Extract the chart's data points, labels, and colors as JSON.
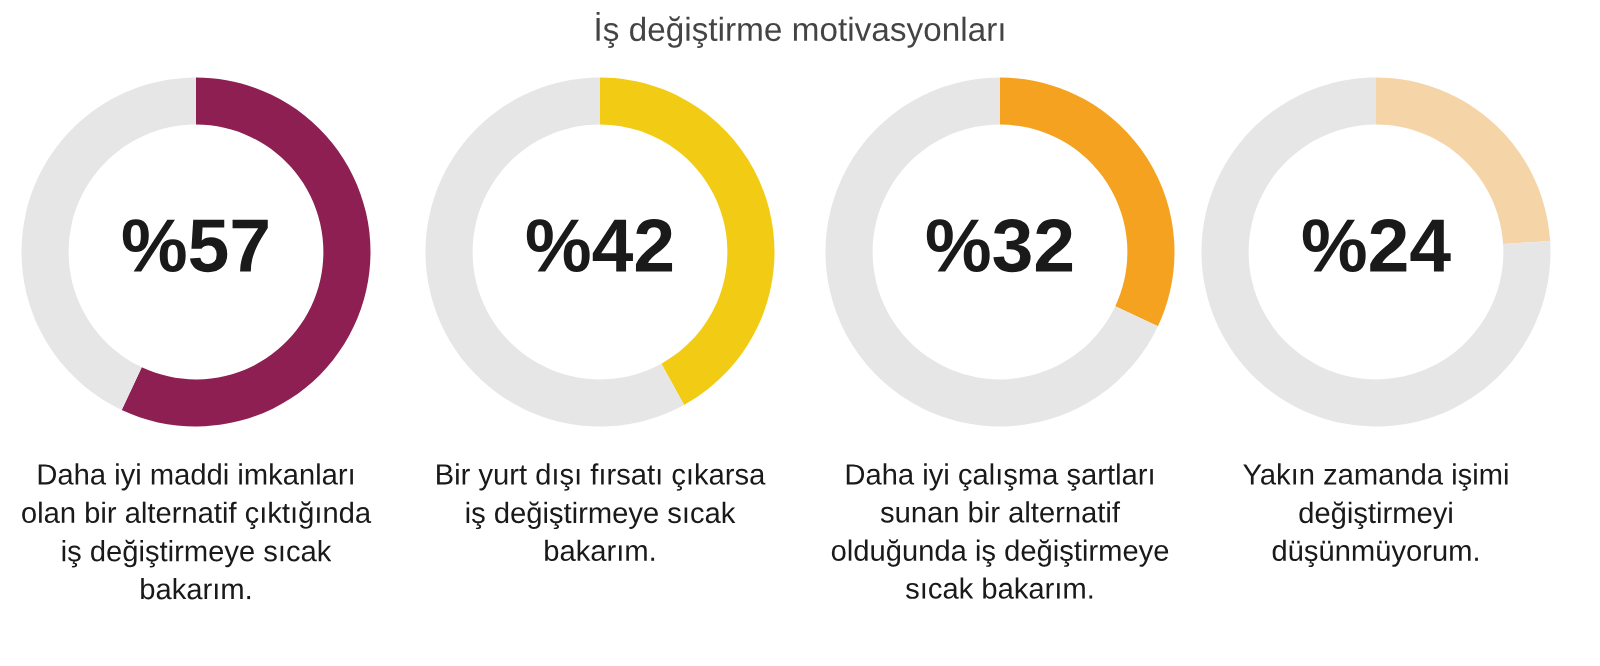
{
  "chart_data": [
    {
      "type": "donut",
      "title": "İş değiştirme motivasyonları",
      "categories": [
        null,
        null
      ],
      "values": [
        57,
        43
      ],
      "colors": [
        "#8e1f52",
        "#e6e6e6"
      ],
      "value_labels": [
        "%57",
        null
      ],
      "xlabel": "Daha iyi maddi imkanları\nolan bir alternatif çıktığında\niş değiştirmeye sıcak\nbakarım."
    },
    {
      "type": "donut",
      "categories": [
        null,
        null
      ],
      "values": [
        42,
        58
      ],
      "colors": [
        "#f2cc14",
        "#e6e6e6"
      ],
      "value_labels": [
        "%42",
        null
      ],
      "xlabel": "Bir yurt dışı fırsatı çıkarsa\niş değiştirmeye sıcak\nbakarım."
    },
    {
      "type": "donut",
      "categories": [
        null,
        null
      ],
      "values": [
        32,
        68
      ],
      "colors": [
        "#f4a21f",
        "#e6e6e6"
      ],
      "value_labels": [
        "%32",
        null
      ],
      "xlabel": "Daha iyi çalışma şartları\nsunan bir alternatif\nolduğunda iş değiştirmeye\nsıcak bakarım."
    },
    {
      "type": "donut",
      "categories": [
        null,
        null
      ],
      "values": [
        24,
        76
      ],
      "colors": [
        "#f5d5a8",
        "#e6e6e6"
      ],
      "value_labels": [
        "%24",
        null
      ],
      "xlabel": "Yakın zamanda işimi\ndeğiştirmeyi\ndüşünmüyorum."
    }
  ]
}
